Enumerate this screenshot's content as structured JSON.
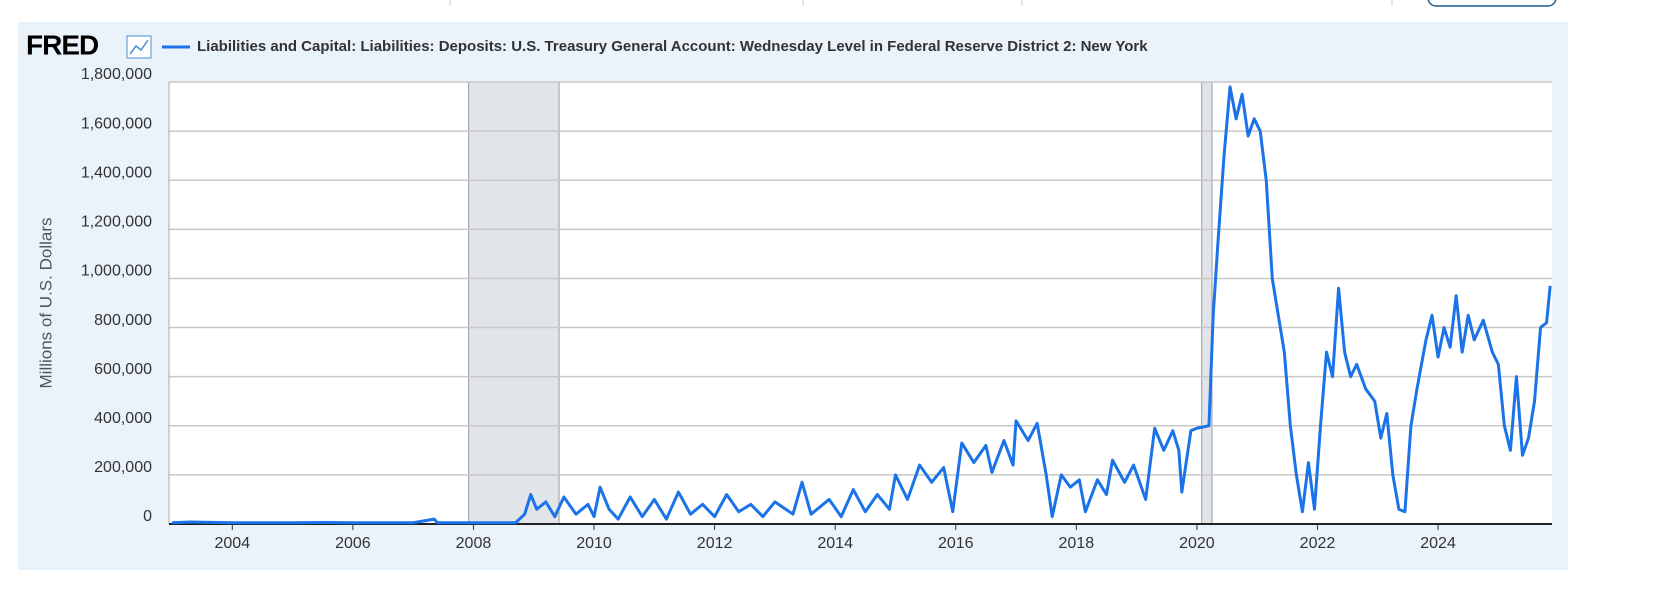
{
  "chart_data": {
    "type": "line",
    "logo": "FRED",
    "ylabel": "Millions of U.S. Dollars",
    "series": [
      {
        "name": "Liabilities and Capital: Liabilities: Deposits: U.S. Treasury General Account: Wednesday Level in Federal Reserve District 2: New York",
        "color": "#1a73e8",
        "values": [
          5000,
          8000,
          5000,
          5000,
          6000,
          5000,
          5000,
          20000,
          5000,
          5000,
          5000,
          40000,
          120000,
          60000,
          90000,
          30000,
          110000,
          40000,
          80000,
          30000,
          150000,
          60000,
          20000,
          110000,
          30000,
          100000,
          20000,
          130000,
          40000,
          80000,
          30000,
          120000,
          50000,
          80000,
          30000,
          90000,
          40000,
          170000,
          40000,
          100000,
          30000,
          140000,
          50000,
          120000,
          60000,
          200000,
          100000,
          240000,
          170000,
          230000,
          50000,
          330000,
          250000,
          320000,
          210000,
          340000,
          240000,
          420000,
          340000,
          410000,
          200000,
          30000,
          200000,
          150000,
          180000,
          50000,
          180000,
          120000,
          260000,
          170000,
          240000,
          100000,
          390000,
          300000,
          380000,
          300000,
          130000,
          380000,
          390000,
          400000,
          850000,
          1150000,
          1500000,
          1780000,
          1650000,
          1750000,
          1580000,
          1650000,
          1600000,
          1400000,
          1000000,
          850000,
          700000,
          400000,
          200000,
          50000,
          250000,
          60000,
          400000,
          700000,
          600000,
          960000,
          700000,
          600000,
          650000,
          550000,
          500000,
          350000,
          450000,
          200000,
          60000,
          50000,
          400000,
          550000,
          750000,
          850000,
          680000,
          800000,
          720000,
          930000,
          700000,
          850000,
          750000,
          830000,
          700000,
          650000,
          400000,
          300000,
          600000,
          280000,
          350000,
          500000,
          800000,
          820000,
          970000
        ]
      }
    ],
    "x": [
      2003.0,
      2003.3,
      2004.0,
      2005.0,
      2005.5,
      2006.0,
      2007.0,
      2007.35,
      2007.4,
      2008.0,
      2008.7,
      2008.85,
      2008.95,
      2009.05,
      2009.2,
      2009.35,
      2009.5,
      2009.7,
      2009.9,
      2010.0,
      2010.1,
      2010.25,
      2010.4,
      2010.6,
      2010.8,
      2011.0,
      2011.2,
      2011.4,
      2011.6,
      2011.8,
      2012.0,
      2012.2,
      2012.4,
      2012.6,
      2012.8,
      2013.0,
      2013.3,
      2013.45,
      2013.6,
      2013.9,
      2014.1,
      2014.3,
      2014.5,
      2014.7,
      2014.9,
      2015.0,
      2015.2,
      2015.4,
      2015.6,
      2015.8,
      2015.95,
      2016.1,
      2016.3,
      2016.5,
      2016.6,
      2016.8,
      2016.95,
      2017.0,
      2017.2,
      2017.35,
      2017.5,
      2017.6,
      2017.75,
      2017.9,
      2018.05,
      2018.15,
      2018.35,
      2018.5,
      2018.6,
      2018.8,
      2018.95,
      2019.15,
      2019.3,
      2019.45,
      2019.6,
      2019.7,
      2019.75,
      2019.9,
      2020.0,
      2020.2,
      2020.27,
      2020.35,
      2020.45,
      2020.55,
      2020.65,
      2020.75,
      2020.85,
      2020.95,
      2021.05,
      2021.15,
      2021.25,
      2021.35,
      2021.45,
      2021.55,
      2021.65,
      2021.75,
      2021.85,
      2021.95,
      2022.05,
      2022.15,
      2022.25,
      2022.35,
      2022.45,
      2022.55,
      2022.65,
      2022.8,
      2022.95,
      2023.05,
      2023.15,
      2023.25,
      2023.35,
      2023.45,
      2023.55,
      2023.65,
      2023.8,
      2023.9,
      2024.0,
      2024.1,
      2024.2,
      2024.3,
      2024.4,
      2024.5,
      2024.6,
      2024.75,
      2024.9,
      2025.0,
      2025.1,
      2025.2,
      2025.3,
      2025.4,
      2025.5,
      2025.6,
      2025.7,
      2025.8,
      2025.86
    ],
    "xlim": [
      2002.95,
      2025.89
    ],
    "xticks": [
      2004,
      2006,
      2008,
      2010,
      2012,
      2014,
      2016,
      2018,
      2020,
      2022,
      2024
    ],
    "ylim": [
      0,
      1800000
    ],
    "yticks": [
      0,
      {
        "value": 200000,
        "label": "200,000"
      },
      {
        "value": 400000,
        "label": "400,000"
      },
      {
        "value": 600000,
        "label": "600,000"
      },
      {
        "value": 800000,
        "label": "800,000"
      },
      {
        "value": 1000000,
        "label": "1,000,000"
      },
      {
        "value": 1200000,
        "label": "1,200,000"
      },
      {
        "value": 1400000,
        "label": "1,400,000"
      },
      {
        "value": 1600000,
        "label": "1,600,000"
      },
      {
        "value": 1800000,
        "label": "1,800,000"
      }
    ],
    "recessions": [
      [
        2007.92,
        2009.42
      ],
      [
        2020.08,
        2020.25
      ]
    ],
    "grid": true
  }
}
